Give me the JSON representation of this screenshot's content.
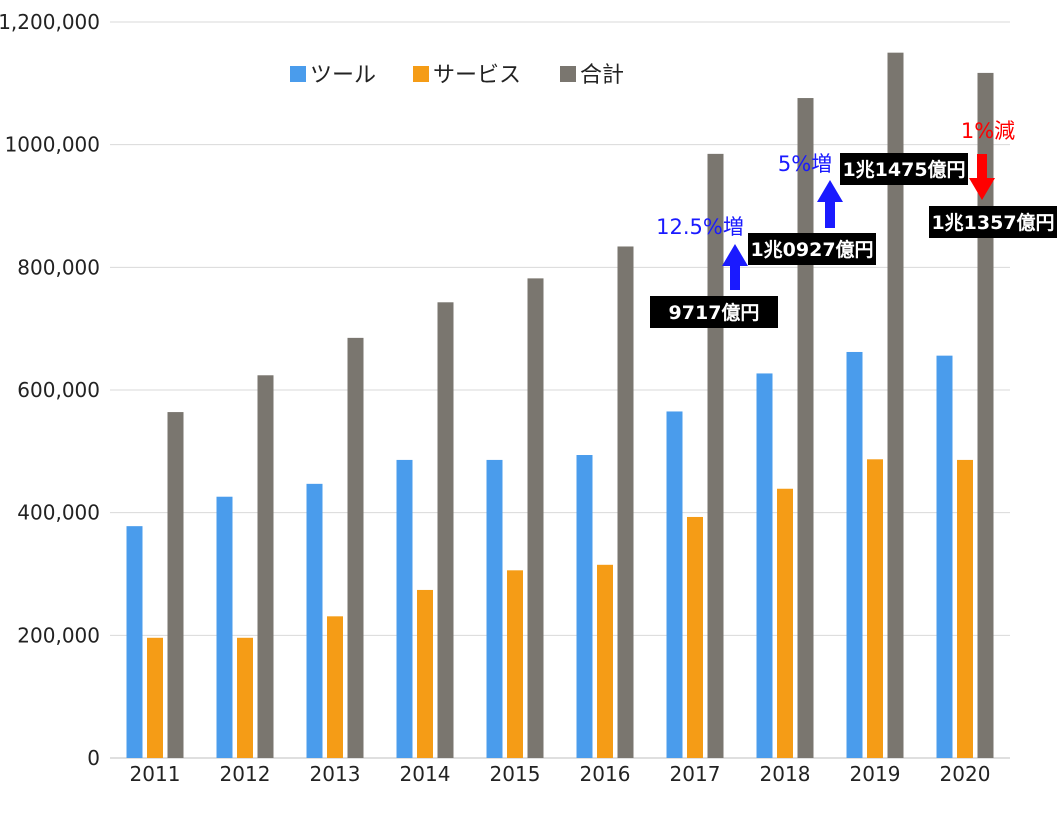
{
  "chart_data": {
    "type": "bar",
    "categories": [
      "2011",
      "2012",
      "2013",
      "2014",
      "2015",
      "2016",
      "2017",
      "2018",
      "2019",
      "2020"
    ],
    "series": [
      {
        "name": "ツール",
        "color": "#4a9cec",
        "values": [
          378000,
          426000,
          447000,
          486000,
          486000,
          494000,
          565000,
          627000,
          662000,
          656000
        ]
      },
      {
        "name": "サービス",
        "color": "#f59c16",
        "values": [
          196000,
          196000,
          231000,
          274000,
          306000,
          315000,
          393000,
          439000,
          487000,
          486000
        ]
      },
      {
        "name": "合計",
        "color": "#7a766f",
        "values": [
          564000,
          624000,
          685000,
          743000,
          782000,
          834000,
          985000,
          1076000,
          1150000,
          1117000
        ]
      }
    ],
    "ylim": [
      0,
      1200000
    ],
    "yticks": [
      0,
      200000,
      400000,
      600000,
      800000,
      1000000,
      1200000
    ],
    "ytick_labels": [
      "0",
      "200,000",
      "400,000",
      "600,000",
      "800,000",
      "1000,000",
      "1,200,000"
    ],
    "grid": true,
    "legend_position": "top-left",
    "annotations": [
      {
        "label": "9717億円"
      },
      {
        "label": "12.5%増",
        "color": "#1a1aff",
        "direction": "up"
      },
      {
        "label": "1兆0927億円"
      },
      {
        "label": "5%増",
        "color": "#1a1aff",
        "direction": "up"
      },
      {
        "label": "1兆1475億円"
      },
      {
        "label": "1%減",
        "color": "#ff0000",
        "direction": "down"
      },
      {
        "label": "1兆1357億円"
      }
    ]
  }
}
